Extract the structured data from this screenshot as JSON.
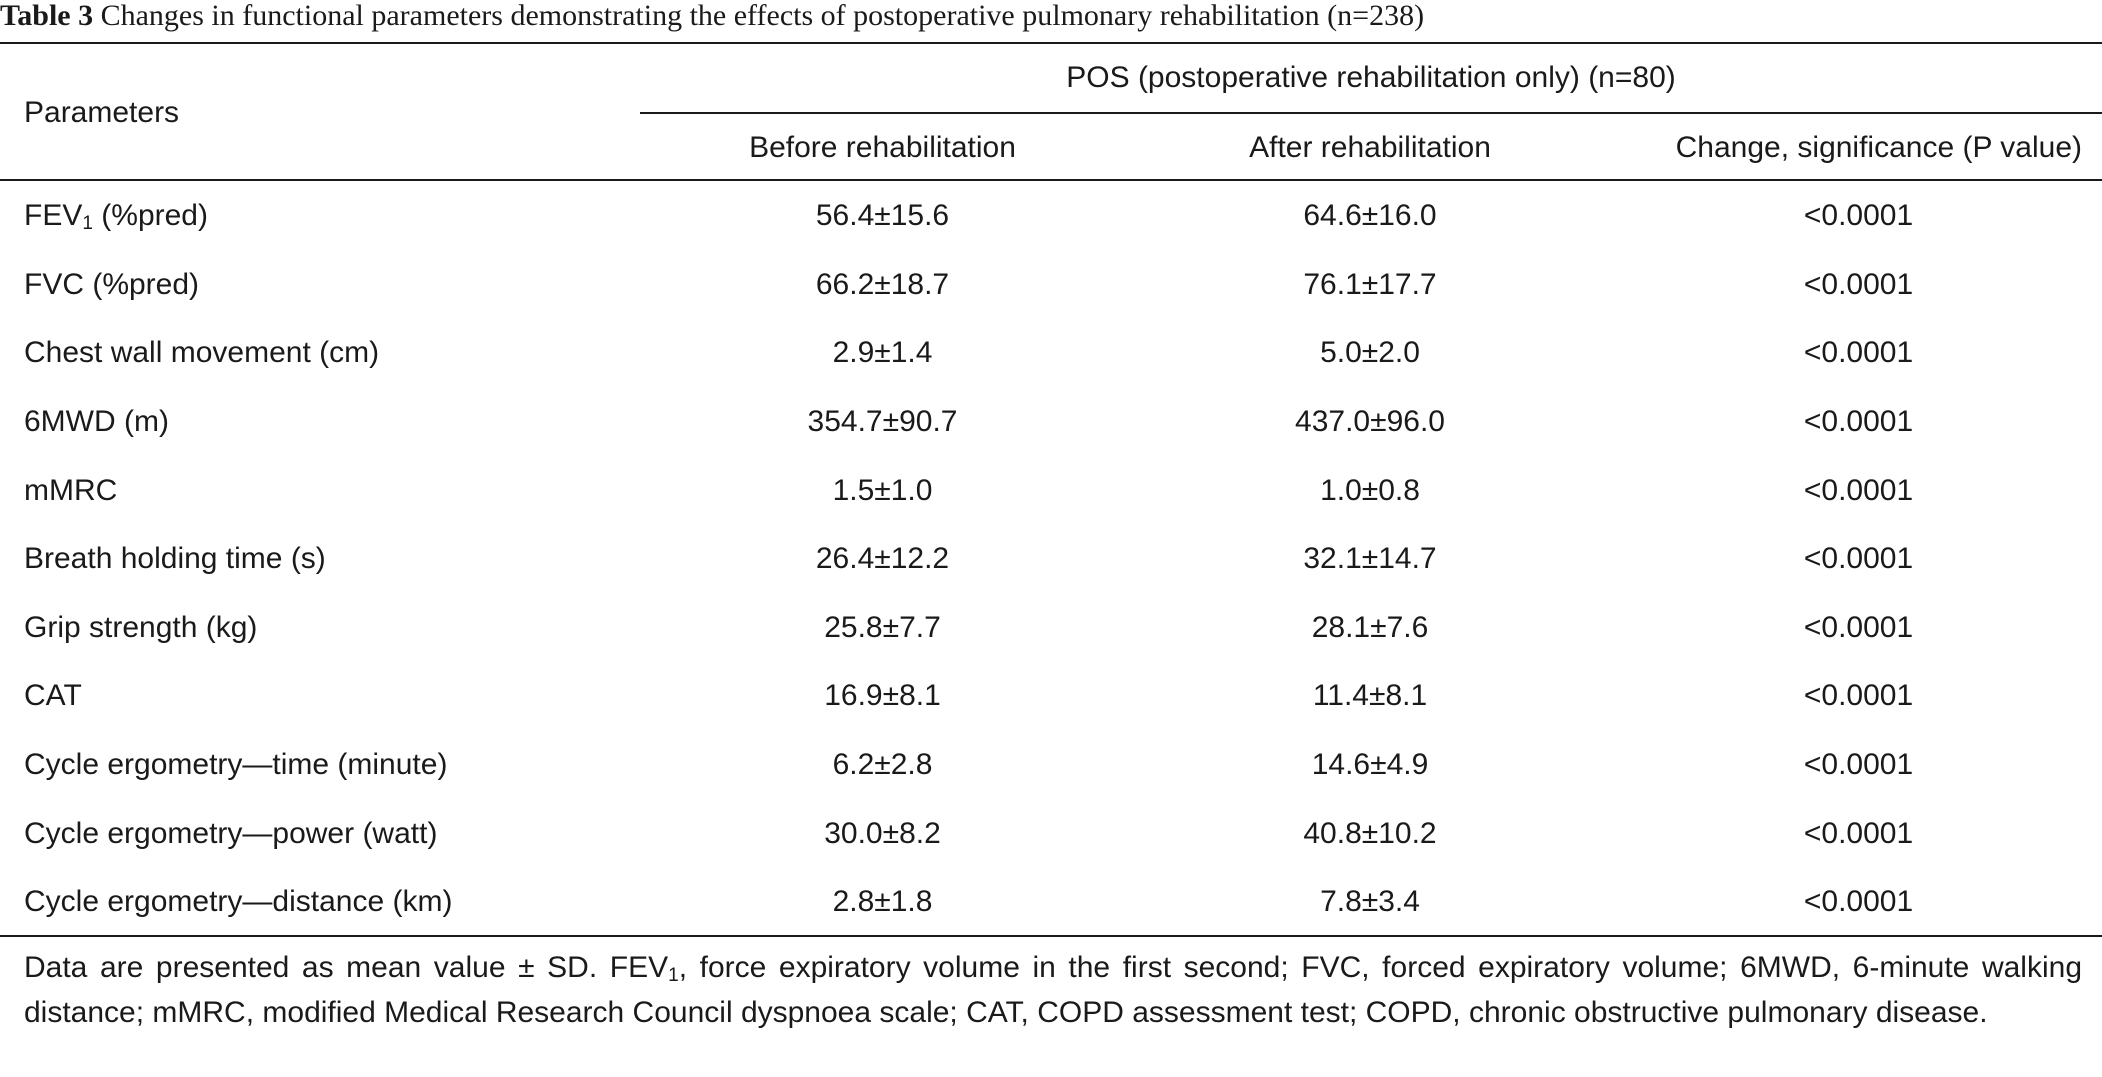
{
  "caption": {
    "label": "Table 3",
    "text": "Changes in functional parameters demonstrating the effects of postoperative pulmonary rehabilitation (n=238)"
  },
  "table": {
    "param_header": "Parameters",
    "group_header": "POS (postoperative rehabilitation only) (n=80)",
    "columns": [
      "Before rehabilitation",
      "After rehabilitation",
      "Change, significance (P value)"
    ],
    "rows": [
      {
        "param": "FEV",
        "param_sub": "1",
        "param_suffix": " (%pred)",
        "before": "56.4±15.6",
        "after": "64.6±16.0",
        "p": "<0.0001"
      },
      {
        "param": "FVC (%pred)",
        "before": "66.2±18.7",
        "after": "76.1±17.7",
        "p": "<0.0001"
      },
      {
        "param": "Chest wall movement (cm)",
        "before": "2.9±1.4",
        "after": "5.0±2.0",
        "p": "<0.0001"
      },
      {
        "param": "6MWD (m)",
        "before": "354.7±90.7",
        "after": "437.0±96.0",
        "p": "<0.0001"
      },
      {
        "param": "mMRC",
        "before": "1.5±1.0",
        "after": "1.0±0.8",
        "p": "<0.0001"
      },
      {
        "param": "Breath holding time (s)",
        "before": "26.4±12.2",
        "after": "32.1±14.7",
        "p": "<0.0001"
      },
      {
        "param": "Grip strength (kg)",
        "before": "25.8±7.7",
        "after": "28.1±7.6",
        "p": "<0.0001"
      },
      {
        "param": "CAT",
        "before": "16.9±8.1",
        "after": "11.4±8.1",
        "p": "<0.0001"
      },
      {
        "param": "Cycle ergometry—time (minute)",
        "before": "6.2±2.8",
        "after": "14.6±4.9",
        "p": "<0.0001"
      },
      {
        "param": "Cycle ergometry—power (watt)",
        "before": "30.0±8.2",
        "after": "40.8±10.2",
        "p": "<0.0001"
      },
      {
        "param": "Cycle ergometry—distance (km)",
        "before": "2.8±1.8",
        "after": "7.8±3.4",
        "p": "<0.0001"
      }
    ]
  },
  "footnote": {
    "part1": "Data are presented as mean value ± SD. FEV",
    "sub": "1",
    "part2": ", force expiratory volume in the first second; FVC, forced expiratory volume; 6MWD, 6-minute walking distance; mMRC, modified Medical Research Council dyspnoea scale; CAT, COPD assessment test; COPD, chronic obstructive pulmonary disease."
  }
}
